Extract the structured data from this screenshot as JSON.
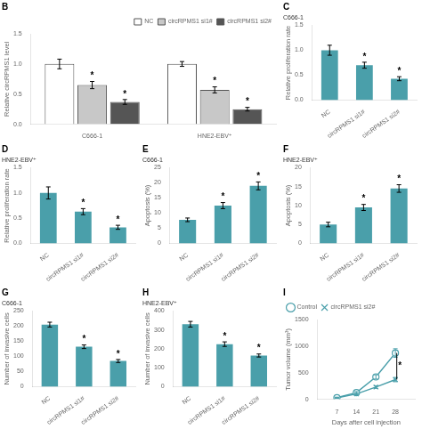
{
  "chart_data": [
    {
      "type": "bar",
      "title": "B",
      "categories": [
        "C666-1",
        "HNE2-EBV⁺"
      ],
      "series": [
        {
          "name": "NC",
          "color": "#ffffff",
          "values": [
            1.0,
            1.0
          ],
          "errors": [
            0.08,
            0.04
          ]
        },
        {
          "name": "circRPMS1 si1#",
          "color": "#c8c8c8",
          "values": [
            0.65,
            0.57
          ],
          "errors": [
            0.06,
            0.05
          ]
        },
        {
          "name": "circRPMS1 si2#",
          "color": "#555555",
          "values": [
            0.37,
            0.25
          ],
          "errors": [
            0.04,
            0.03
          ]
        }
      ],
      "ylabel": "Relative circRPMS1 level",
      "ylim": [
        0,
        1.5
      ],
      "yticks": [
        {
          "value": 0,
          "label": "0.0"
        },
        {
          "value": 0.5,
          "label": "0.5"
        },
        {
          "value": 1,
          "label": "1.0"
        },
        {
          "value": 1.5,
          "label": "1.5"
        }
      ],
      "grid": false,
      "legend": "upper right",
      "annotations": [
        {
          "text": "*",
          "category": "C666-1",
          "series": "circRPMS1 si1#"
        },
        {
          "text": "*",
          "category": "C666-1",
          "series": "circRPMS1 si2#"
        },
        {
          "text": "*",
          "category": "HNE2-EBV⁺",
          "series": "circRPMS1 si1#"
        },
        {
          "text": "*",
          "category": "HNE2-EBV⁺",
          "series": "circRPMS1 si2#"
        }
      ]
    },
    {
      "type": "bar",
      "title": "C",
      "subtitle": "C666-1",
      "categories": [
        "NC",
        "circRPMS1 si1#",
        "circRPMS1 si2#"
      ],
      "values": [
        1.0,
        0.7,
        0.43
      ],
      "errors": [
        0.1,
        0.06,
        0.04
      ],
      "color": "#4a9faa",
      "ylabel": "Relative proliferation rate",
      "ylim": [
        0,
        1.5
      ],
      "yticks": [
        {
          "value": 0,
          "label": "0.0"
        },
        {
          "value": 0.5,
          "label": "0.5"
        },
        {
          "value": 1,
          "label": "1.0"
        },
        {
          "value": 1.5,
          "label": "1.5"
        }
      ],
      "grid": false,
      "annotations": [
        {
          "text": "*",
          "category": "circRPMS1 si1#"
        },
        {
          "text": "*",
          "category": "circRPMS1 si2#"
        }
      ]
    },
    {
      "type": "bar",
      "title": "D",
      "subtitle": "HNE2-EBV⁺",
      "categories": [
        "NC",
        "circRPMS1 si1#",
        "circRPMS1 si2#"
      ],
      "values": [
        1.0,
        0.63,
        0.32
      ],
      "errors": [
        0.12,
        0.06,
        0.04
      ],
      "color": "#4a9faa",
      "ylabel": "Relative proliferation rate",
      "ylim": [
        0,
        1.5
      ],
      "yticks": [
        {
          "value": 0,
          "label": "0.0"
        },
        {
          "value": 0.5,
          "label": "0.5"
        },
        {
          "value": 1,
          "label": "1.0"
        },
        {
          "value": 1.5,
          "label": "1.5"
        }
      ],
      "grid": false,
      "annotations": [
        {
          "text": "*",
          "category": "circRPMS1 si1#"
        },
        {
          "text": "*",
          "category": "circRPMS1 si2#"
        }
      ]
    },
    {
      "type": "bar",
      "title": "E",
      "subtitle": "C666-1",
      "categories": [
        "NC",
        "circRPMS1 si1#",
        "circRPMS1 si2#"
      ],
      "values": [
        7.8,
        12.5,
        19.0
      ],
      "errors": [
        0.6,
        1.0,
        1.3
      ],
      "color": "#4a9faa",
      "ylabel": "Apoptosis (%)",
      "ylim": [
        0,
        25
      ],
      "yticks": [
        0,
        5,
        10,
        15,
        20,
        25
      ],
      "grid": false,
      "annotations": [
        {
          "text": "*",
          "category": "circRPMS1 si1#"
        },
        {
          "text": "*",
          "category": "circRPMS1 si2#"
        }
      ]
    },
    {
      "type": "bar",
      "title": "F",
      "subtitle": "HNE2-EBV⁺",
      "categories": [
        "NC",
        "circRPMS1 si1#",
        "circRPMS1 si2#"
      ],
      "values": [
        5.0,
        9.5,
        14.5
      ],
      "errors": [
        0.6,
        0.8,
        1.0
      ],
      "color": "#4a9faa",
      "ylabel": "Apoptosis (%)",
      "ylim": [
        0,
        20
      ],
      "yticks": [
        0,
        5,
        10,
        15,
        20
      ],
      "grid": false,
      "annotations": [
        {
          "text": "*",
          "category": "circRPMS1 si1#"
        },
        {
          "text": "*",
          "category": "circRPMS1 si2#"
        }
      ]
    },
    {
      "type": "bar",
      "title": "G",
      "subtitle": "C666-1",
      "categories": [
        "NC",
        "circRPMS1 si1#",
        "circRPMS1 si2#"
      ],
      "values": [
        205,
        132,
        85
      ],
      "errors": [
        8,
        6,
        5
      ],
      "color": "#4a9faa",
      "ylabel": "Number of invasive cells",
      "ylim": [
        0,
        250
      ],
      "yticks": [
        0,
        50,
        100,
        150,
        200,
        250
      ],
      "grid": false,
      "annotations": [
        {
          "text": "*",
          "category": "circRPMS1 si1#"
        },
        {
          "text": "*",
          "category": "circRPMS1 si2#"
        }
      ]
    },
    {
      "type": "bar",
      "title": "H",
      "subtitle": "HNE2-EBV⁺",
      "categories": [
        "NC",
        "circRPMS1 si1#",
        "circRPMS1 si2#"
      ],
      "values": [
        330,
        225,
        165
      ],
      "errors": [
        15,
        12,
        8
      ],
      "color": "#4a9faa",
      "ylabel": "Number of invasive cells",
      "ylim": [
        0,
        400
      ],
      "yticks": [
        0,
        100,
        200,
        300,
        400
      ],
      "grid": false,
      "annotations": [
        {
          "text": "*",
          "category": "circRPMS1 si1#"
        },
        {
          "text": "*",
          "category": "circRPMS1 si2#"
        }
      ]
    },
    {
      "type": "line",
      "title": "I",
      "x": [
        7,
        14,
        21,
        28
      ],
      "series": [
        {
          "name": "Control",
          "color": "#4a9faa",
          "marker": "o",
          "values": [
            30,
            125,
            420,
            870
          ],
          "errors": [
            10,
            20,
            40,
            80
          ]
        },
        {
          "name": "circRPMS1 si2#",
          "color": "#4a9faa",
          "marker": "x",
          "values": [
            25,
            100,
            230,
            370
          ],
          "errors": [
            8,
            15,
            25,
            40
          ]
        }
      ],
      "xlabel": "Days after cell injection",
      "ylabel": "Tumor volume (mm³)",
      "xlim": [
        0,
        35
      ],
      "xticks": [
        7,
        14,
        21,
        28
      ],
      "ylim": [
        0,
        1500
      ],
      "yticks": [
        0,
        500,
        1000,
        1500
      ],
      "grid": false,
      "legend": "upper left",
      "annotations": [
        {
          "text": "*",
          "x": 29,
          "y": 620,
          "bracket": {
            "x": 28.5,
            "y": [
              370,
              870
            ]
          }
        }
      ]
    }
  ]
}
